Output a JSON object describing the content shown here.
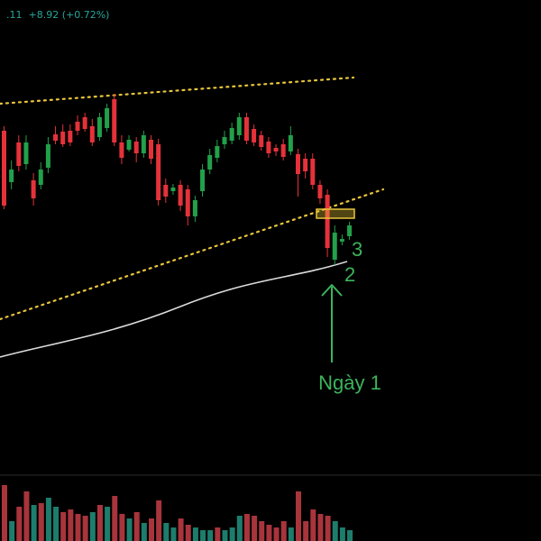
{
  "header": {
    "price_fragment": ".11",
    "change": "+8.92 (+0.72%)",
    "color": "#26a69a"
  },
  "colors": {
    "up": "#22a04a",
    "down": "#e5323a",
    "vol_up": "#1d7d6c",
    "vol_down": "#a8343c",
    "trendline": "#e8c53a",
    "ma": "#dcdcdc",
    "annotation": "#3cb45c",
    "highlight": "#e8c53a"
  },
  "chart_data": {
    "type": "candlestick",
    "x_axis": "trading days",
    "candles": [
      [
        0,
        228,
        145,
        140,
        232,
        "down"
      ],
      [
        1,
        202,
        188,
        178,
        210,
        "up"
      ],
      [
        2,
        184,
        158,
        150,
        190,
        "down"
      ],
      [
        3,
        182,
        158,
        150,
        188,
        "up"
      ],
      [
        4,
        220,
        200,
        192,
        228,
        "down"
      ],
      [
        5,
        205,
        188,
        180,
        210,
        "up"
      ],
      [
        6,
        186,
        160,
        152,
        192,
        "up"
      ],
      [
        7,
        156,
        149,
        140,
        160,
        "down"
      ],
      [
        8,
        160,
        146,
        138,
        163,
        "down"
      ],
      [
        9,
        158,
        145,
        138,
        162,
        "down"
      ],
      [
        10,
        145,
        135,
        128,
        150,
        "down"
      ],
      [
        11,
        143,
        130,
        125,
        146,
        "down"
      ],
      [
        12,
        158,
        140,
        132,
        162,
        "down"
      ],
      [
        13,
        152,
        130,
        125,
        156,
        "up"
      ],
      [
        14,
        142,
        120,
        115,
        146,
        "up"
      ],
      [
        15,
        110,
        158,
        104,
        162,
        "down"
      ],
      [
        16,
        158,
        175,
        150,
        182,
        "down"
      ],
      [
        17,
        166,
        155,
        150,
        168,
        "up"
      ],
      [
        18,
        157,
        170,
        152,
        180,
        "down"
      ],
      [
        19,
        170,
        150,
        145,
        175,
        "up"
      ],
      [
        20,
        155,
        176,
        150,
        182,
        "down"
      ],
      [
        21,
        160,
        222,
        154,
        228,
        "down"
      ],
      [
        22,
        205,
        218,
        198,
        225,
        "down"
      ],
      [
        23,
        212,
        208,
        204,
        216,
        "up"
      ],
      [
        24,
        205,
        228,
        200,
        234,
        "down"
      ],
      [
        25,
        210,
        240,
        205,
        250,
        "down"
      ],
      [
        26,
        240,
        222,
        217,
        246,
        "up"
      ],
      [
        27,
        212,
        188,
        182,
        218,
        "up"
      ],
      [
        28,
        188,
        172,
        165,
        193,
        "up"
      ],
      [
        29,
        175,
        162,
        155,
        180,
        "up"
      ],
      [
        30,
        160,
        152,
        145,
        165,
        "up"
      ],
      [
        31,
        156,
        142,
        136,
        160,
        "up"
      ],
      [
        32,
        150,
        130,
        125,
        155,
        "up"
      ],
      [
        33,
        130,
        156,
        125,
        160,
        "down"
      ],
      [
        34,
        143,
        158,
        138,
        162,
        "down"
      ],
      [
        35,
        150,
        163,
        145,
        167,
        "down"
      ],
      [
        36,
        157,
        170,
        152,
        175,
        "down"
      ],
      [
        37,
        164,
        168,
        160,
        173,
        "down"
      ],
      [
        38,
        160,
        174,
        154,
        178,
        "down"
      ],
      [
        39,
        168,
        150,
        140,
        172,
        "up"
      ],
      [
        40,
        171,
        193,
        165,
        218,
        "down"
      ],
      [
        41,
        176,
        190,
        170,
        198,
        "down"
      ],
      [
        42,
        176,
        205,
        170,
        210,
        "down"
      ],
      [
        43,
        205,
        220,
        200,
        226,
        "down"
      ],
      [
        44,
        216,
        275,
        210,
        285,
        "down"
      ],
      [
        45,
        288,
        258,
        250,
        294,
        "up"
      ],
      [
        46,
        268,
        265,
        260,
        272,
        "up"
      ],
      [
        47,
        262,
        250,
        246,
        266,
        "up"
      ]
    ],
    "volume": [
      [
        0,
        62,
        "down"
      ],
      [
        1,
        22,
        "up"
      ],
      [
        2,
        38,
        "down"
      ],
      [
        3,
        55,
        "down"
      ],
      [
        4,
        40,
        "up"
      ],
      [
        5,
        42,
        "down"
      ],
      [
        6,
        48,
        "up"
      ],
      [
        7,
        38,
        "up"
      ],
      [
        8,
        32,
        "down"
      ],
      [
        9,
        35,
        "down"
      ],
      [
        10,
        30,
        "down"
      ],
      [
        11,
        28,
        "down"
      ],
      [
        12,
        32,
        "up"
      ],
      [
        13,
        40,
        "down"
      ],
      [
        14,
        38,
        "up"
      ],
      [
        15,
        50,
        "down"
      ],
      [
        16,
        30,
        "down"
      ],
      [
        17,
        25,
        "up"
      ],
      [
        18,
        32,
        "down"
      ],
      [
        19,
        20,
        "up"
      ],
      [
        20,
        25,
        "down"
      ],
      [
        21,
        45,
        "down"
      ],
      [
        22,
        20,
        "up"
      ],
      [
        23,
        15,
        "up"
      ],
      [
        24,
        25,
        "down"
      ],
      [
        25,
        18,
        "down"
      ],
      [
        26,
        15,
        "up"
      ],
      [
        27,
        12,
        "up"
      ],
      [
        28,
        12,
        "up"
      ],
      [
        29,
        15,
        "down"
      ],
      [
        30,
        12,
        "up"
      ],
      [
        31,
        15,
        "up"
      ],
      [
        32,
        28,
        "up"
      ],
      [
        33,
        30,
        "down"
      ],
      [
        34,
        28,
        "down"
      ],
      [
        35,
        22,
        "down"
      ],
      [
        36,
        18,
        "down"
      ],
      [
        37,
        15,
        "down"
      ],
      [
        38,
        22,
        "down"
      ],
      [
        39,
        15,
        "up"
      ],
      [
        40,
        55,
        "down"
      ],
      [
        41,
        22,
        "down"
      ],
      [
        42,
        35,
        "down"
      ],
      [
        43,
        30,
        "down"
      ],
      [
        44,
        28,
        "down"
      ],
      [
        45,
        22,
        "up"
      ],
      [
        46,
        15,
        "up"
      ],
      [
        47,
        12,
        "up"
      ]
    ],
    "annotations": {
      "arrow_label": "Ngày 1",
      "label_2": "2",
      "label_3": "3"
    }
  }
}
